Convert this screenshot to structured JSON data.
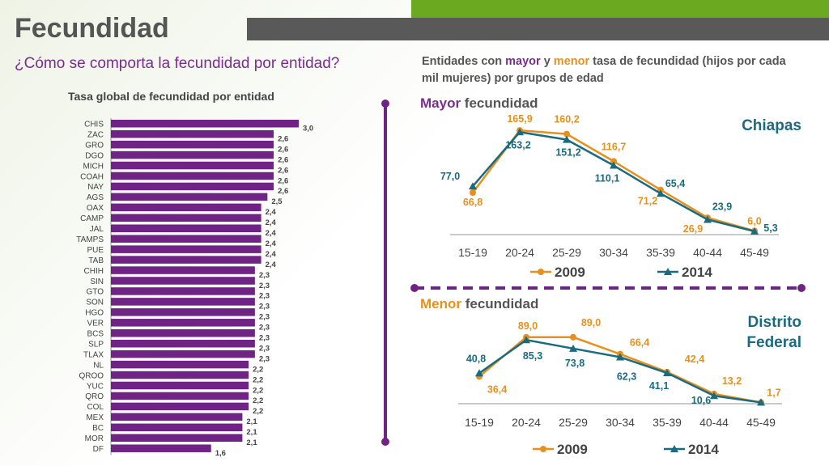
{
  "header": {
    "title": "Fecundidad"
  },
  "left": {
    "subtitle": "¿Cómo se comporta la fecundidad por entidad?",
    "chart_title": "Tasa global de fecundidad por entidad"
  },
  "right": {
    "title_parts": [
      "Entidades con ",
      "mayor",
      " y ",
      "menor",
      " tasa de fecundidad (hijos por cada mil mujeres) por grupos de edad"
    ],
    "high": {
      "label_word": "Mayor",
      "label_rest": " fecundidad",
      "entity": "Chiapas"
    },
    "low": {
      "label_word": "Menor",
      "label_rest": " fecundidad",
      "entity": "Distrito Federal"
    }
  },
  "colors": {
    "purple": "#6f2384",
    "orange": "#e8901e",
    "teal": "#1a6b80",
    "gray": "#888888"
  },
  "chart_data": [
    {
      "type": "bar",
      "orientation": "horizontal",
      "title": "Tasa global de fecundidad por entidad",
      "categories": [
        "CHIS",
        "ZAC",
        "GRO",
        "DGO",
        "MICH",
        "COAH",
        "NAY",
        "AGS",
        "OAX",
        "CAMP",
        "JAL",
        "TAMPS",
        "PUE",
        "TAB",
        "CHIH",
        "SIN",
        "GTO",
        "SON",
        "HGO",
        "VER",
        "BCS",
        "SLP",
        "TLAX",
        "NL",
        "QROO",
        "YUC",
        "QRO",
        "COL",
        "MEX",
        "BC",
        "MOR",
        "DF"
      ],
      "values": [
        3.0,
        2.6,
        2.6,
        2.6,
        2.6,
        2.6,
        2.6,
        2.5,
        2.4,
        2.4,
        2.4,
        2.4,
        2.4,
        2.4,
        2.3,
        2.3,
        2.3,
        2.3,
        2.3,
        2.3,
        2.3,
        2.3,
        2.3,
        2.2,
        2.2,
        2.2,
        2.2,
        2.2,
        2.1,
        2.1,
        2.1,
        1.6
      ],
      "labels": [
        "3,0",
        "2,6",
        "2,6",
        "2,6",
        "2,6",
        "2,6",
        "2,6",
        "2,5",
        "2,4",
        "2,4",
        "2,4",
        "2,4",
        "2,4",
        "2,4",
        "2,3",
        "2,3",
        "2,3",
        "2,3",
        "2,3",
        "2,3",
        "2,3",
        "2,3",
        "2,3",
        "2,2",
        "2,2",
        "2,2",
        "2,2",
        "2,2",
        "2,1",
        "2,1",
        "2,1",
        "1,6"
      ],
      "xlim": [
        0,
        3.0
      ]
    },
    {
      "type": "line",
      "title": "Mayor fecundidad",
      "categories": [
        "15-19",
        "20-24",
        "25-29",
        "30-34",
        "35-39",
        "40-44",
        "45-49"
      ],
      "series": [
        {
          "name": "2009",
          "values": [
            66.8,
            165.9,
            160.2,
            116.7,
            71.2,
            26.9,
            6.0
          ],
          "labels": [
            "66,8",
            "165,9",
            "160,2",
            "116,7",
            "71,2",
            "26,9",
            "6,0"
          ]
        },
        {
          "name": "2014",
          "values": [
            77.0,
            163.2,
            151.2,
            110.1,
            65.4,
            23.9,
            5.3
          ],
          "labels": [
            "77,0",
            "163,2",
            "151,2",
            "110,1",
            "65,4",
            "23,9",
            "5,3"
          ]
        }
      ],
      "ylim": [
        0,
        170
      ],
      "legend": "bottom"
    },
    {
      "type": "line",
      "title": "Menor fecundidad",
      "categories": [
        "15-19",
        "20-24",
        "25-29",
        "30-34",
        "35-39",
        "40-44",
        "45-49"
      ],
      "series": [
        {
          "name": "2009",
          "values": [
            36.4,
            89.0,
            89.0,
            66.4,
            42.4,
            13.2,
            1.7
          ],
          "labels": [
            "36,4",
            "89,0",
            "89,0",
            "66,4",
            "42,4",
            "13,2",
            "1,7"
          ]
        },
        {
          "name": "2014",
          "values": [
            40.8,
            85.3,
            73.8,
            62.3,
            41.1,
            10.6,
            1.7
          ],
          "labels": [
            "40,8",
            "85,3",
            "73,8",
            "62,3",
            "41,1",
            "10,6",
            ""
          ]
        }
      ],
      "ylim": [
        0,
        92
      ],
      "legend": "bottom"
    }
  ]
}
